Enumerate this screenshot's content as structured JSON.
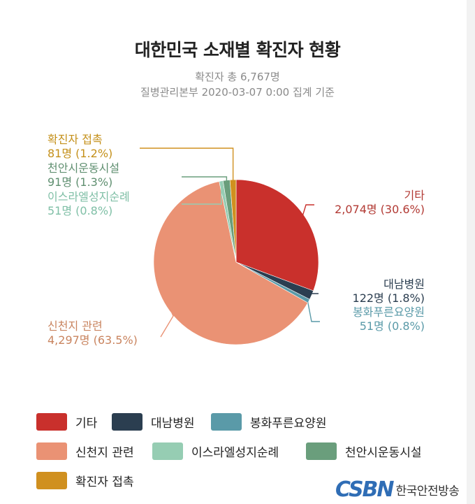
{
  "header": {
    "title": "대한민국 소재별 확진자 현황",
    "subtitle_total": "확진자 총 6,767명",
    "subtitle_source": "질병관리본부 2020-03-07 0:00 집계 기준"
  },
  "chart_data": {
    "type": "pie",
    "start_angle_deg": 0,
    "direction": "clockwise",
    "slices": [
      {
        "name": "기타",
        "value": 2074,
        "percent": 30.6,
        "value_label": "2,074명 (30.6%)",
        "color": "#c9302c",
        "label_color": "#b23a34"
      },
      {
        "name": "대남병원",
        "value": 122,
        "percent": 1.8,
        "value_label": "122명 (1.8%)",
        "color": "#2b3e50",
        "label_color": "#2b3e50"
      },
      {
        "name": "봉화푸른요양원",
        "value": 51,
        "percent": 0.8,
        "value_label": "51명 (0.8%)",
        "color": "#5a9aa8",
        "label_color": "#5a9aa8"
      },
      {
        "name": "신천지 관련",
        "value": 4297,
        "percent": 63.5,
        "value_label": "4,297명 (63.5%)",
        "color": "#ea9274",
        "label_color": "#c9845f"
      },
      {
        "name": "이스라엘성지순례",
        "value": 51,
        "percent": 0.8,
        "value_label": "51명 (0.8%)",
        "color": "#96cdb3",
        "label_color": "#7fbfa6"
      },
      {
        "name": "천안시운동시설",
        "value": 91,
        "percent": 1.3,
        "value_label": "91명 (1.3%)",
        "color": "#6a9e7c",
        "label_color": "#5f8f70"
      },
      {
        "name": "확진자 접촉",
        "value": 81,
        "percent": 1.2,
        "value_label": "81명 (1.2%)",
        "color": "#d0901f",
        "label_color": "#c4901a"
      }
    ]
  },
  "legend": {
    "placement": "bottom",
    "items": [
      "기타",
      "대남병원",
      "봉화푸른요양원",
      "신천지 관련",
      "이스라엘성지순례",
      "천안시운동시설",
      "확진자 접촉"
    ]
  },
  "branding": {
    "logo_text": "CSBN",
    "name": "한국안전방송",
    "logo_color": "#2f6db5"
  }
}
